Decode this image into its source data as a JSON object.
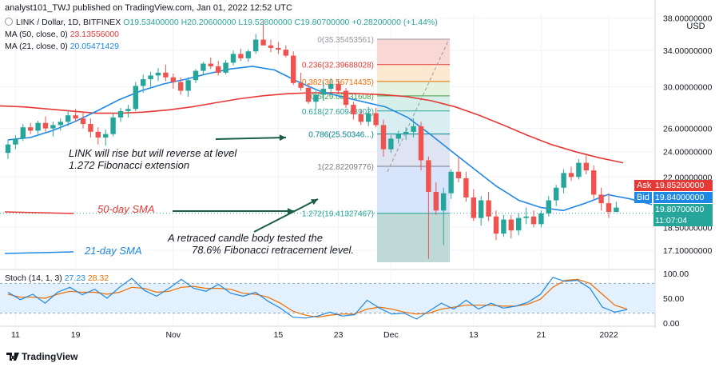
{
  "header": {
    "published": "analyst101_TWJ published on TradingView.com, Jan 01, 2022 12:52 UTC",
    "symbol": "LINK / Dollar, 1D, BITFINEX",
    "ohlc": "O19.53400000  H20.20600000  L19.52800000  C19.80700000  +0.28200000 (+1.44%)",
    "ma50_label": "MA (50, close, 0)",
    "ma50_value": "23.13556000",
    "ma21_label": "MA (21, close, 0)",
    "ma21_value": "20.05471429"
  },
  "price_axis": {
    "currency": "USD",
    "ticks": [
      "38.00000000",
      "34.00000000",
      "30.00000000",
      "26.00000000",
      "24.00000000",
      "22.00000000",
      "18.50000000",
      "17.10000000"
    ],
    "ask_label": "Ask",
    "ask_value": "19.85200000",
    "bid_label": "Bid",
    "bid_value": "19.84000000",
    "last_value": "19.80700000",
    "countdown": "11:07:04"
  },
  "time_axis": [
    "11",
    "19",
    "Nov",
    "15",
    "23",
    "Dec",
    "13",
    "21",
    "2022"
  ],
  "fib_levels": [
    {
      "label": "0(35.35453561)"
    },
    {
      "label": "0.236(32.39688028)"
    },
    {
      "label": "0.382(30.56714435)"
    },
    {
      "label": "0.5(29.08831608)"
    },
    {
      "label": "0.618(27.60948902)"
    },
    {
      "label": "0.786(25.50346...)"
    },
    {
      "label": "1(22.82209776)"
    },
    {
      "label": "1.272(19.41327467)"
    }
  ],
  "annotations": {
    "rise": [
      "LINK will rise but will reverse at level",
      "1.272 Fibonacci extension"
    ],
    "retrace": [
      "A retraced candle body tested the",
      "78.6% Fibonacci retracement level."
    ],
    "sma50": "50-day SMA",
    "sma21": "21-day SMA"
  },
  "stoch": {
    "label": "Stoch (14, 1, 3)",
    "k_value": "27.23",
    "d_value": "28.32",
    "ticks": [
      "100.00",
      "50.00",
      "0.00"
    ]
  },
  "footer": {
    "brand": "TradingView"
  },
  "colors": {
    "up": "#26a69a",
    "down": "#ef5350",
    "ma50": "#e53935",
    "ma21": "#1e88e5",
    "stoch_k": "#1e88e5",
    "stoch_d": "#ef6c00"
  },
  "chart_data": {
    "type": "candlestick",
    "title": "LINK / Dollar, 1D, BITFINEX",
    "candles": [
      [
        23.9,
        25.0,
        23.4,
        24.6
      ],
      [
        24.6,
        25.4,
        24.2,
        25.1
      ],
      [
        25.1,
        26.4,
        24.9,
        26.1
      ],
      [
        26.1,
        26.5,
        25.5,
        25.8
      ],
      [
        25.8,
        26.7,
        25.5,
        26.5
      ],
      [
        26.5,
        27.1,
        25.7,
        26.0
      ],
      [
        26.0,
        26.6,
        25.3,
        26.3
      ],
      [
        26.3,
        26.9,
        25.8,
        26.6
      ],
      [
        26.6,
        27.6,
        26.2,
        27.2
      ],
      [
        27.2,
        27.8,
        26.6,
        26.9
      ],
      [
        26.9,
        27.5,
        26.0,
        26.4
      ],
      [
        26.4,
        26.9,
        25.2,
        25.7
      ],
      [
        25.7,
        26.1,
        24.6,
        25.2
      ],
      [
        25.2,
        25.9,
        24.5,
        25.5
      ],
      [
        25.5,
        27.4,
        25.3,
        27.0
      ],
      [
        27.0,
        27.9,
        26.6,
        27.6
      ],
      [
        27.6,
        28.2,
        27.0,
        27.8
      ],
      [
        27.8,
        30.5,
        27.6,
        30.1
      ],
      [
        30.1,
        31.3,
        29.4,
        30.8
      ],
      [
        30.8,
        31.6,
        30.0,
        31.2
      ],
      [
        31.2,
        32.0,
        30.6,
        31.5
      ],
      [
        31.5,
        32.4,
        30.6,
        31.0
      ],
      [
        31.0,
        31.4,
        29.8,
        30.5
      ],
      [
        30.5,
        31.0,
        29.2,
        29.6
      ],
      [
        29.6,
        31.0,
        29.0,
        30.7
      ],
      [
        30.7,
        31.9,
        30.4,
        31.7
      ],
      [
        31.7,
        32.7,
        31.2,
        32.5
      ],
      [
        32.5,
        33.2,
        31.9,
        32.2
      ],
      [
        32.2,
        32.8,
        31.2,
        31.5
      ],
      [
        31.5,
        32.9,
        31.3,
        32.6
      ],
      [
        32.6,
        34.0,
        32.3,
        33.6
      ],
      [
        33.6,
        34.2,
        32.8,
        33.1
      ],
      [
        33.1,
        34.1,
        32.7,
        33.9
      ],
      [
        33.9,
        36.0,
        33.6,
        35.3
      ],
      [
        35.3,
        37.8,
        34.8,
        34.6
      ],
      [
        34.6,
        35.3,
        33.8,
        34.3
      ],
      [
        34.3,
        35.0,
        33.6,
        34.1
      ],
      [
        34.1,
        34.6,
        33.2,
        33.4
      ],
      [
        33.4,
        33.9,
        30.2,
        30.4
      ],
      [
        30.4,
        31.5,
        29.6,
        29.9
      ],
      [
        29.9,
        30.4,
        28.3,
        28.5
      ],
      [
        28.5,
        29.6,
        27.8,
        29.2
      ],
      [
        29.2,
        30.5,
        28.6,
        29.8
      ],
      [
        29.8,
        30.9,
        29.1,
        30.3
      ],
      [
        30.3,
        30.8,
        29.4,
        29.6
      ],
      [
        29.6,
        29.9,
        27.9,
        28.2
      ],
      [
        28.2,
        28.5,
        26.8,
        27.3
      ],
      [
        27.3,
        27.8,
        26.3,
        26.6
      ],
      [
        26.6,
        28.0,
        26.2,
        27.4
      ],
      [
        27.4,
        27.9,
        26.1,
        26.3
      ],
      [
        26.3,
        26.8,
        23.6,
        24.2
      ],
      [
        24.2,
        25.4,
        23.9,
        25.1
      ],
      [
        25.1,
        25.8,
        24.7,
        25.5
      ],
      [
        25.5,
        26.1,
        25.0,
        25.7
      ],
      [
        25.7,
        26.9,
        25.2,
        26.2
      ],
      [
        26.2,
        26.6,
        22.5,
        23.3
      ],
      [
        23.3,
        23.6,
        16.6,
        20.9
      ],
      [
        20.9,
        21.6,
        19.3,
        19.6
      ],
      [
        19.6,
        21.2,
        17.4,
        20.8
      ],
      [
        20.8,
        22.6,
        20.4,
        22.4
      ],
      [
        22.4,
        23.5,
        21.6,
        21.9
      ],
      [
        21.9,
        22.4,
        20.2,
        20.5
      ],
      [
        20.5,
        21.1,
        18.9,
        19.1
      ],
      [
        19.1,
        20.6,
        18.6,
        20.3
      ],
      [
        20.3,
        20.9,
        18.9,
        19.2
      ],
      [
        19.2,
        19.6,
        17.7,
        18.1
      ],
      [
        18.1,
        19.3,
        17.9,
        19.0
      ],
      [
        19.0,
        19.3,
        17.8,
        18.3
      ],
      [
        18.3,
        19.4,
        18.0,
        19.1
      ],
      [
        19.1,
        19.8,
        18.7,
        19.2
      ],
      [
        19.2,
        19.6,
        18.5,
        18.7
      ],
      [
        18.7,
        19.6,
        18.5,
        19.4
      ],
      [
        19.4,
        20.6,
        19.2,
        20.3
      ],
      [
        20.3,
        21.4,
        19.9,
        21.2
      ],
      [
        21.2,
        22.6,
        20.8,
        22.3
      ],
      [
        22.3,
        22.8,
        21.7,
        22.0
      ],
      [
        22.0,
        23.4,
        21.8,
        23.1
      ],
      [
        23.1,
        23.7,
        22.2,
        22.5
      ],
      [
        22.5,
        22.9,
        20.4,
        20.7
      ],
      [
        20.7,
        21.2,
        19.6,
        20.1
      ],
      [
        20.1,
        20.8,
        19.1,
        19.5
      ],
      [
        19.5,
        20.2,
        19.5,
        19.8
      ]
    ],
    "ma50": [
      28.1,
      28.0,
      27.8,
      27.6,
      27.4,
      27.4,
      27.5,
      27.7,
      28.0,
      28.4,
      28.8,
      29.1,
      29.3,
      29.4,
      29.4,
      29.3,
      29.2,
      29.0,
      28.6,
      28.0,
      27.2,
      26.3,
      25.4,
      24.6,
      24.0,
      23.5,
      23.1
    ],
    "ma21": [
      25.0,
      25.2,
      25.8,
      26.6,
      27.6,
      28.7,
      29.6,
      30.3,
      30.8,
      31.4,
      31.9,
      32.2,
      31.8,
      30.6,
      29.6,
      29.0,
      28.5,
      28.0,
      27.0,
      25.5,
      24.0,
      22.6,
      21.3,
      20.3,
      19.8,
      19.6,
      20.1,
      20.7,
      20.4,
      20.0
    ],
    "stoch_k": [
      62,
      47,
      58,
      40,
      62,
      72,
      57,
      68,
      50,
      72,
      90,
      66,
      54,
      70,
      88,
      70,
      64,
      78,
      60,
      54,
      62,
      44,
      30,
      12,
      10,
      14,
      22,
      14,
      17,
      46,
      30,
      18,
      20,
      8,
      24,
      40,
      28,
      46,
      28,
      40,
      30,
      34,
      42,
      58,
      92,
      84,
      86,
      70,
      32,
      22,
      27
    ],
    "stoch_d": [
      58,
      52,
      52,
      50,
      58,
      64,
      62,
      62,
      58,
      62,
      72,
      70,
      62,
      64,
      72,
      74,
      70,
      70,
      68,
      60,
      58,
      52,
      40,
      24,
      16,
      12,
      16,
      18,
      18,
      28,
      32,
      28,
      22,
      18,
      20,
      28,
      32,
      36,
      36,
      36,
      34,
      34,
      38,
      48,
      72,
      86,
      88,
      80,
      58,
      36,
      28
    ],
    "ylim": [
      16.0,
      38.5
    ],
    "log_scale": true,
    "stoch_ylim": [
      0,
      100
    ]
  }
}
